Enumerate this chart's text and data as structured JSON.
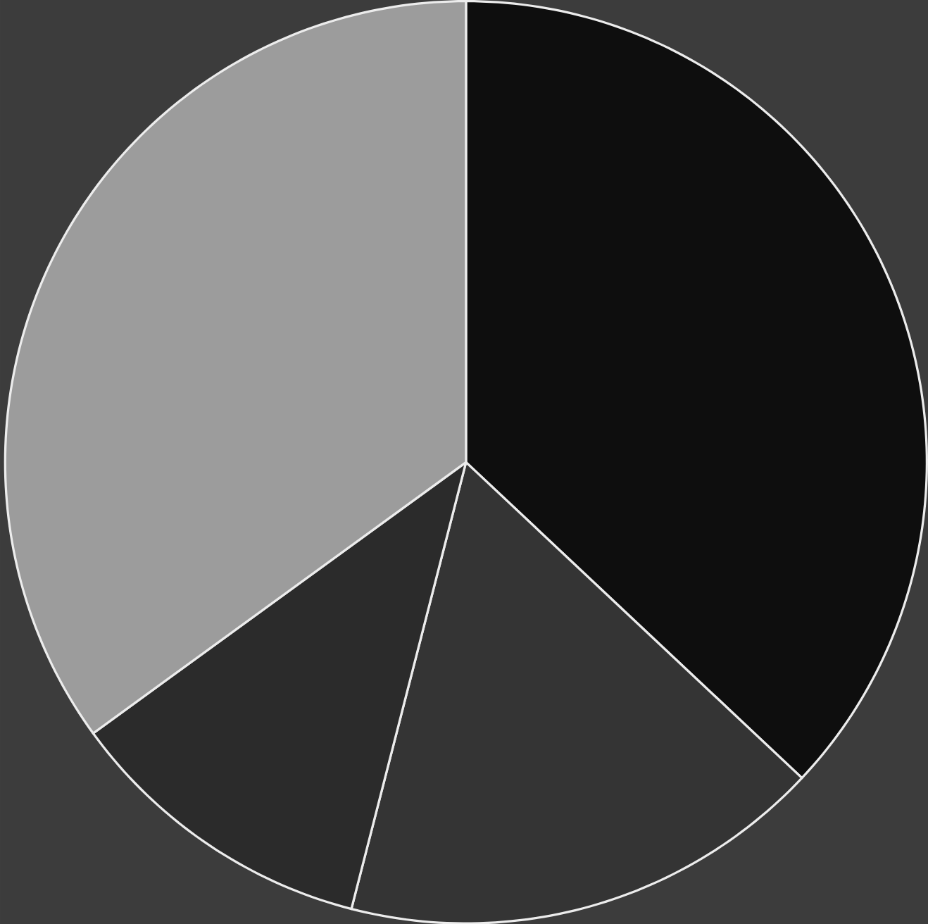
{
  "chart_data": {
    "type": "pie",
    "categories": [
      null,
      null,
      null,
      null
    ],
    "values": [
      37,
      17,
      11,
      35
    ],
    "colors": [
      "#0e0e0e",
      "#343434",
      "#2b2b2b",
      "#9c9c9c"
    ]
  }
}
